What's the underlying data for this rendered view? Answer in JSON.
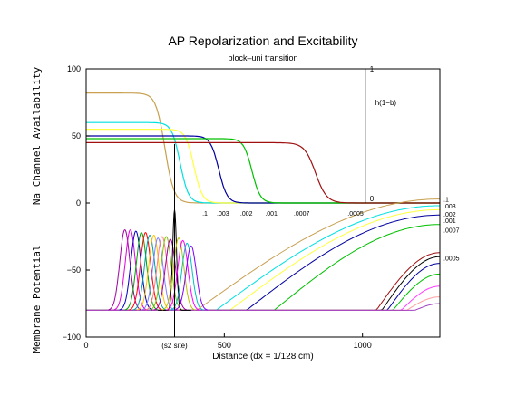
{
  "chart_data": {
    "type": "line",
    "title": "AP Repolarization and Excitability",
    "subtitle": "block–uni transition",
    "xlabel": "Distance (dx = 1/128 cm)",
    "ylabel_top": "Na Channel Availability",
    "ylabel_bottom": "Membrane Potential",
    "xlim": [
      0,
      1280
    ],
    "ylim": [
      -100,
      100
    ],
    "x_ticks": [
      {
        "value": 0,
        "label": "0"
      },
      {
        "value": 500,
        "label": "500"
      },
      {
        "value": 1000,
        "label": "1000"
      }
    ],
    "x_annotation": {
      "value": 320,
      "label": "(s2 site)"
    },
    "y_ticks": [
      {
        "value": 100,
        "label": "100"
      },
      {
        "value": 50,
        "label": "50"
      },
      {
        "value": 0,
        "label": "0"
      },
      {
        "value": -50,
        "label": "−50"
      },
      {
        "value": -100,
        "label": "−100"
      }
    ],
    "secondary_axis": {
      "x": 1010,
      "label": "h(1−b)",
      "top_label": "1",
      "bottom_label": "0",
      "range": [
        0,
        1
      ]
    },
    "inset_b_labels": [
      {
        "label": ".1",
        "x": 430
      },
      {
        "label": ".003",
        "x": 495
      },
      {
        "label": ".002",
        "x": 580
      },
      {
        "label": ".001",
        "x": 670
      },
      {
        "label": ".0007",
        "x": 780
      },
      {
        "label": ".0005",
        "x": 975
      }
    ],
    "right_labels": [
      {
        "label": ".1",
        "y": 3
      },
      {
        "label": ".003",
        "y": -2
      },
      {
        "label": ".002",
        "y": -8
      },
      {
        "label": ".001",
        "y": -13
      },
      {
        "label": ".0007",
        "y": -20
      },
      {
        "label": ".0005",
        "y": -41
      }
    ],
    "h_curves": [
      {
        "color": "#c8a050",
        "start": 0.82,
        "center": 285,
        "width": 65,
        "end": 0
      },
      {
        "color": "#00e0e0",
        "start": 0.6,
        "center": 340,
        "width": 60,
        "end": 0
      },
      {
        "color": "#ffff40",
        "start": 0.55,
        "center": 390,
        "width": 60,
        "end": 0
      },
      {
        "color": "#0000a0",
        "start": 0.5,
        "center": 480,
        "width": 60,
        "end": 0
      },
      {
        "color": "#00c000",
        "start": 0.48,
        "center": 600,
        "width": 60,
        "end": 0
      },
      {
        "color": "#a01010",
        "start": 0.45,
        "center": 830,
        "width": 80,
        "end": 0
      }
    ],
    "repolarization_curves": [
      {
        "color": "#c8a050",
        "rise": 400,
        "end_v": 3
      },
      {
        "color": "#00e0e0",
        "rise": 470,
        "end_v": -2
      },
      {
        "color": "#ffff40",
        "rise": 520,
        "end_v": -5
      },
      {
        "color": "#0000a0",
        "rise": 580,
        "end_v": -9
      },
      {
        "color": "#00c000",
        "rise": 680,
        "end_v": -16
      },
      {
        "color": "#a01010",
        "rise": 1050,
        "end_v": -37
      },
      {
        "color": "#000000",
        "rise": 1070,
        "end_v": -40
      },
      {
        "color": "#0000a0",
        "rise": 1090,
        "end_v": -45
      },
      {
        "color": "#00c000",
        "rise": 1110,
        "end_v": -53
      },
      {
        "color": "#ff40ff",
        "rise": 1140,
        "end_v": -62
      },
      {
        "color": "#ffa0a0",
        "rise": 1160,
        "end_v": -70
      },
      {
        "color": "#a040c0",
        "rise": 1190,
        "end_v": -75
      }
    ],
    "action_potential_bursts": [
      {
        "color": "#a000a0",
        "center": 140,
        "peak": -20
      },
      {
        "color": "#e000e0",
        "center": 160,
        "peak": -20
      },
      {
        "color": "#0000c0",
        "center": 180,
        "peak": -21
      },
      {
        "color": "#00a000",
        "center": 200,
        "peak": -22
      },
      {
        "color": "#ff0000",
        "center": 215,
        "peak": -22
      },
      {
        "color": "#00a0a0",
        "center": 230,
        "peak": -24
      },
      {
        "color": "#ffc000",
        "center": 245,
        "peak": -24
      },
      {
        "color": "#8080ff",
        "center": 260,
        "peak": -26
      },
      {
        "color": "#ff8080",
        "center": 275,
        "peak": -25
      },
      {
        "color": "#80c000",
        "center": 290,
        "peak": -25
      },
      {
        "color": "#a000a0",
        "center": 305,
        "peak": -27
      },
      {
        "color": "#000000",
        "center": 320,
        "peak": -5
      },
      {
        "color": "#c0c000",
        "center": 335,
        "peak": -26
      },
      {
        "color": "#ff00ff",
        "center": 350,
        "peak": -28
      },
      {
        "color": "#00c0c0",
        "center": 365,
        "peak": -30
      },
      {
        "color": "#8000ff",
        "center": 380,
        "peak": -32
      }
    ],
    "resting_potential": -80,
    "legend": "none",
    "grid": false
  }
}
